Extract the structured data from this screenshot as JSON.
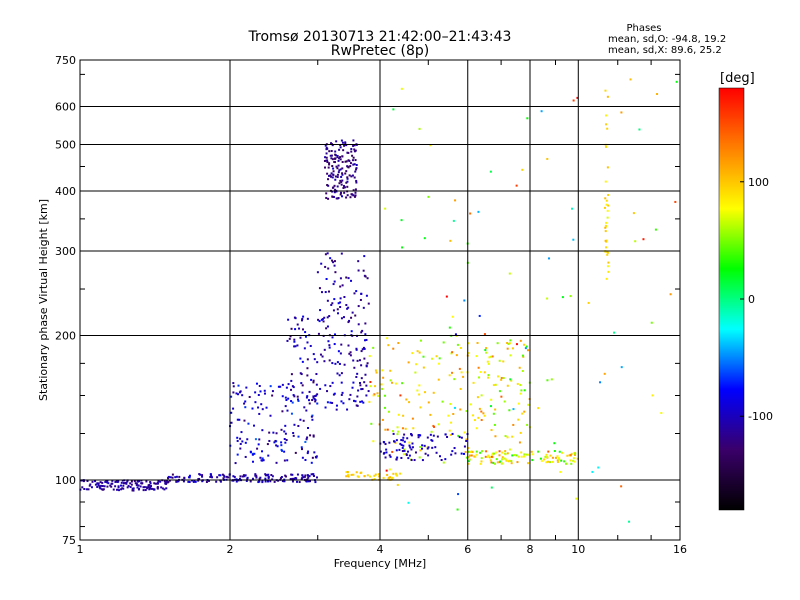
{
  "chart_data": {
    "type": "scatter",
    "title": "Tromsø 20130713 21:42:00–21:43:43",
    "subtitle": "RwPretec (8p)",
    "xlabel": "Frequency [MHz]",
    "ylabel": "Stationary phase Virtual Height [km]",
    "x_scale": "log",
    "y_scale": "log",
    "xlim": [
      1,
      16
    ],
    "ylim": [
      75,
      750
    ],
    "x_ticks": [
      1,
      2,
      4,
      6,
      8,
      10,
      16
    ],
    "x_tick_labels": [
      "1",
      "2",
      "4",
      "6",
      "8",
      "10",
      "16"
    ],
    "y_ticks": [
      75,
      100,
      200,
      300,
      400,
      500,
      600,
      750
    ],
    "y_tick_labels": [
      "75",
      "100",
      "200",
      "300",
      "400",
      "500",
      "600",
      "750"
    ],
    "grid": true,
    "phase_info": {
      "title": "Phases",
      "line_o": "mean, sd,O: -94.8, 19.2",
      "line_x": "mean, sd,X:  89.6, 25.2"
    },
    "colorbar": {
      "unit_label": "[deg]",
      "range": [
        -180,
        180
      ],
      "ticks": [
        100,
        0,
        -100
      ],
      "tick_labels": [
        "100",
        "0",
        "-100"
      ],
      "colors": [
        "#000000",
        "#3a006a",
        "#0000ff",
        "#00ffff",
        "#00ff00",
        "#ffff00",
        "#ff8000",
        "#ff0000"
      ]
    },
    "clusters": [
      {
        "f_min": 1.0,
        "f_max": 1.5,
        "h_min": 95,
        "h_max": 100,
        "n": 140,
        "phase_mean": -110,
        "phase_sd": 10
      },
      {
        "f_min": 1.5,
        "f_max": 3.0,
        "h_min": 99,
        "h_max": 103,
        "n": 160,
        "phase_mean": -105,
        "phase_sd": 18
      },
      {
        "f_min": 2.0,
        "f_max": 3.0,
        "h_min": 108,
        "h_max": 160,
        "n": 160,
        "phase_mean": -95,
        "phase_sd": 25
      },
      {
        "f_min": 2.6,
        "f_max": 3.8,
        "h_min": 140,
        "h_max": 220,
        "n": 170,
        "phase_mean": -105,
        "phase_sd": 20
      },
      {
        "f_min": 3.0,
        "f_max": 3.8,
        "h_min": 220,
        "h_max": 300,
        "n": 60,
        "phase_mean": -110,
        "phase_sd": 20
      },
      {
        "f_min": 3.1,
        "f_max": 3.6,
        "h_min": 385,
        "h_max": 510,
        "n": 170,
        "phase_mean": -120,
        "phase_sd": 15
      },
      {
        "f_min": 3.8,
        "f_max": 8.0,
        "h_min": 110,
        "h_max": 200,
        "n": 200,
        "phase_mean": 90,
        "phase_sd": 45
      },
      {
        "f_min": 4.0,
        "f_max": 6.0,
        "h_min": 110,
        "h_max": 125,
        "n": 90,
        "phase_mean": -100,
        "phase_sd": 15
      },
      {
        "f_min": 6.0,
        "f_max": 10.0,
        "h_min": 108,
        "h_max": 115,
        "n": 110,
        "phase_mean": 80,
        "phase_sd": 40
      },
      {
        "f_min": 4.0,
        "f_max": 16.0,
        "h_min": 80,
        "h_max": 700,
        "n": 90,
        "phase_mean": 60,
        "phase_sd": 90
      },
      {
        "f_min": 11.3,
        "f_max": 11.5,
        "h_min": 260,
        "h_max": 650,
        "n": 35,
        "phase_mean": 95,
        "phase_sd": 15
      },
      {
        "f_min": 3.4,
        "f_max": 4.4,
        "h_min": 100,
        "h_max": 104,
        "n": 40,
        "phase_mean": 95,
        "phase_sd": 10
      }
    ]
  }
}
